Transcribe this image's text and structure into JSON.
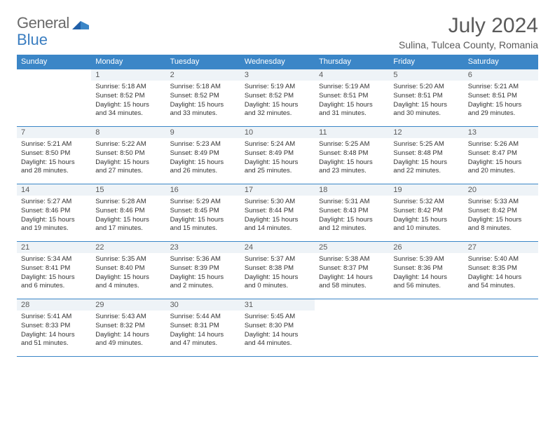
{
  "brand": {
    "word1": "General",
    "word2": "Blue"
  },
  "title": "July 2024",
  "location": "Sulina, Tulcea County, Romania",
  "colors": {
    "header_bg": "#3b86c7",
    "header_fg": "#ffffff",
    "daynum_bg": "#eef3f7",
    "border": "#3b86c7",
    "text": "#333333",
    "title_color": "#5a5a5a",
    "logo_gray": "#6a6a6a",
    "logo_blue": "#3b7ec1"
  },
  "dow": [
    "Sunday",
    "Monday",
    "Tuesday",
    "Wednesday",
    "Thursday",
    "Friday",
    "Saturday"
  ],
  "days": [
    {
      "n": 1,
      "sunrise": "5:18 AM",
      "sunset": "8:52 PM",
      "daylight": "15 hours and 34 minutes."
    },
    {
      "n": 2,
      "sunrise": "5:18 AM",
      "sunset": "8:52 PM",
      "daylight": "15 hours and 33 minutes."
    },
    {
      "n": 3,
      "sunrise": "5:19 AM",
      "sunset": "8:52 PM",
      "daylight": "15 hours and 32 minutes."
    },
    {
      "n": 4,
      "sunrise": "5:19 AM",
      "sunset": "8:51 PM",
      "daylight": "15 hours and 31 minutes."
    },
    {
      "n": 5,
      "sunrise": "5:20 AM",
      "sunset": "8:51 PM",
      "daylight": "15 hours and 30 minutes."
    },
    {
      "n": 6,
      "sunrise": "5:21 AM",
      "sunset": "8:51 PM",
      "daylight": "15 hours and 29 minutes."
    },
    {
      "n": 7,
      "sunrise": "5:21 AM",
      "sunset": "8:50 PM",
      "daylight": "15 hours and 28 minutes."
    },
    {
      "n": 8,
      "sunrise": "5:22 AM",
      "sunset": "8:50 PM",
      "daylight": "15 hours and 27 minutes."
    },
    {
      "n": 9,
      "sunrise": "5:23 AM",
      "sunset": "8:49 PM",
      "daylight": "15 hours and 26 minutes."
    },
    {
      "n": 10,
      "sunrise": "5:24 AM",
      "sunset": "8:49 PM",
      "daylight": "15 hours and 25 minutes."
    },
    {
      "n": 11,
      "sunrise": "5:25 AM",
      "sunset": "8:48 PM",
      "daylight": "15 hours and 23 minutes."
    },
    {
      "n": 12,
      "sunrise": "5:25 AM",
      "sunset": "8:48 PM",
      "daylight": "15 hours and 22 minutes."
    },
    {
      "n": 13,
      "sunrise": "5:26 AM",
      "sunset": "8:47 PM",
      "daylight": "15 hours and 20 minutes."
    },
    {
      "n": 14,
      "sunrise": "5:27 AM",
      "sunset": "8:46 PM",
      "daylight": "15 hours and 19 minutes."
    },
    {
      "n": 15,
      "sunrise": "5:28 AM",
      "sunset": "8:46 PM",
      "daylight": "15 hours and 17 minutes."
    },
    {
      "n": 16,
      "sunrise": "5:29 AM",
      "sunset": "8:45 PM",
      "daylight": "15 hours and 15 minutes."
    },
    {
      "n": 17,
      "sunrise": "5:30 AM",
      "sunset": "8:44 PM",
      "daylight": "15 hours and 14 minutes."
    },
    {
      "n": 18,
      "sunrise": "5:31 AM",
      "sunset": "8:43 PM",
      "daylight": "15 hours and 12 minutes."
    },
    {
      "n": 19,
      "sunrise": "5:32 AM",
      "sunset": "8:42 PM",
      "daylight": "15 hours and 10 minutes."
    },
    {
      "n": 20,
      "sunrise": "5:33 AM",
      "sunset": "8:42 PM",
      "daylight": "15 hours and 8 minutes."
    },
    {
      "n": 21,
      "sunrise": "5:34 AM",
      "sunset": "8:41 PM",
      "daylight": "15 hours and 6 minutes."
    },
    {
      "n": 22,
      "sunrise": "5:35 AM",
      "sunset": "8:40 PM",
      "daylight": "15 hours and 4 minutes."
    },
    {
      "n": 23,
      "sunrise": "5:36 AM",
      "sunset": "8:39 PM",
      "daylight": "15 hours and 2 minutes."
    },
    {
      "n": 24,
      "sunrise": "5:37 AM",
      "sunset": "8:38 PM",
      "daylight": "15 hours and 0 minutes."
    },
    {
      "n": 25,
      "sunrise": "5:38 AM",
      "sunset": "8:37 PM",
      "daylight": "14 hours and 58 minutes."
    },
    {
      "n": 26,
      "sunrise": "5:39 AM",
      "sunset": "8:36 PM",
      "daylight": "14 hours and 56 minutes."
    },
    {
      "n": 27,
      "sunrise": "5:40 AM",
      "sunset": "8:35 PM",
      "daylight": "14 hours and 54 minutes."
    },
    {
      "n": 28,
      "sunrise": "5:41 AM",
      "sunset": "8:33 PM",
      "daylight": "14 hours and 51 minutes."
    },
    {
      "n": 29,
      "sunrise": "5:43 AM",
      "sunset": "8:32 PM",
      "daylight": "14 hours and 49 minutes."
    },
    {
      "n": 30,
      "sunrise": "5:44 AM",
      "sunset": "8:31 PM",
      "daylight": "14 hours and 47 minutes."
    },
    {
      "n": 31,
      "sunrise": "5:45 AM",
      "sunset": "8:30 PM",
      "daylight": "14 hours and 44 minutes."
    }
  ],
  "labels": {
    "sunrise": "Sunrise:",
    "sunset": "Sunset:",
    "daylight": "Daylight:"
  },
  "layout": {
    "first_day_col": 1,
    "weeks": 5
  }
}
